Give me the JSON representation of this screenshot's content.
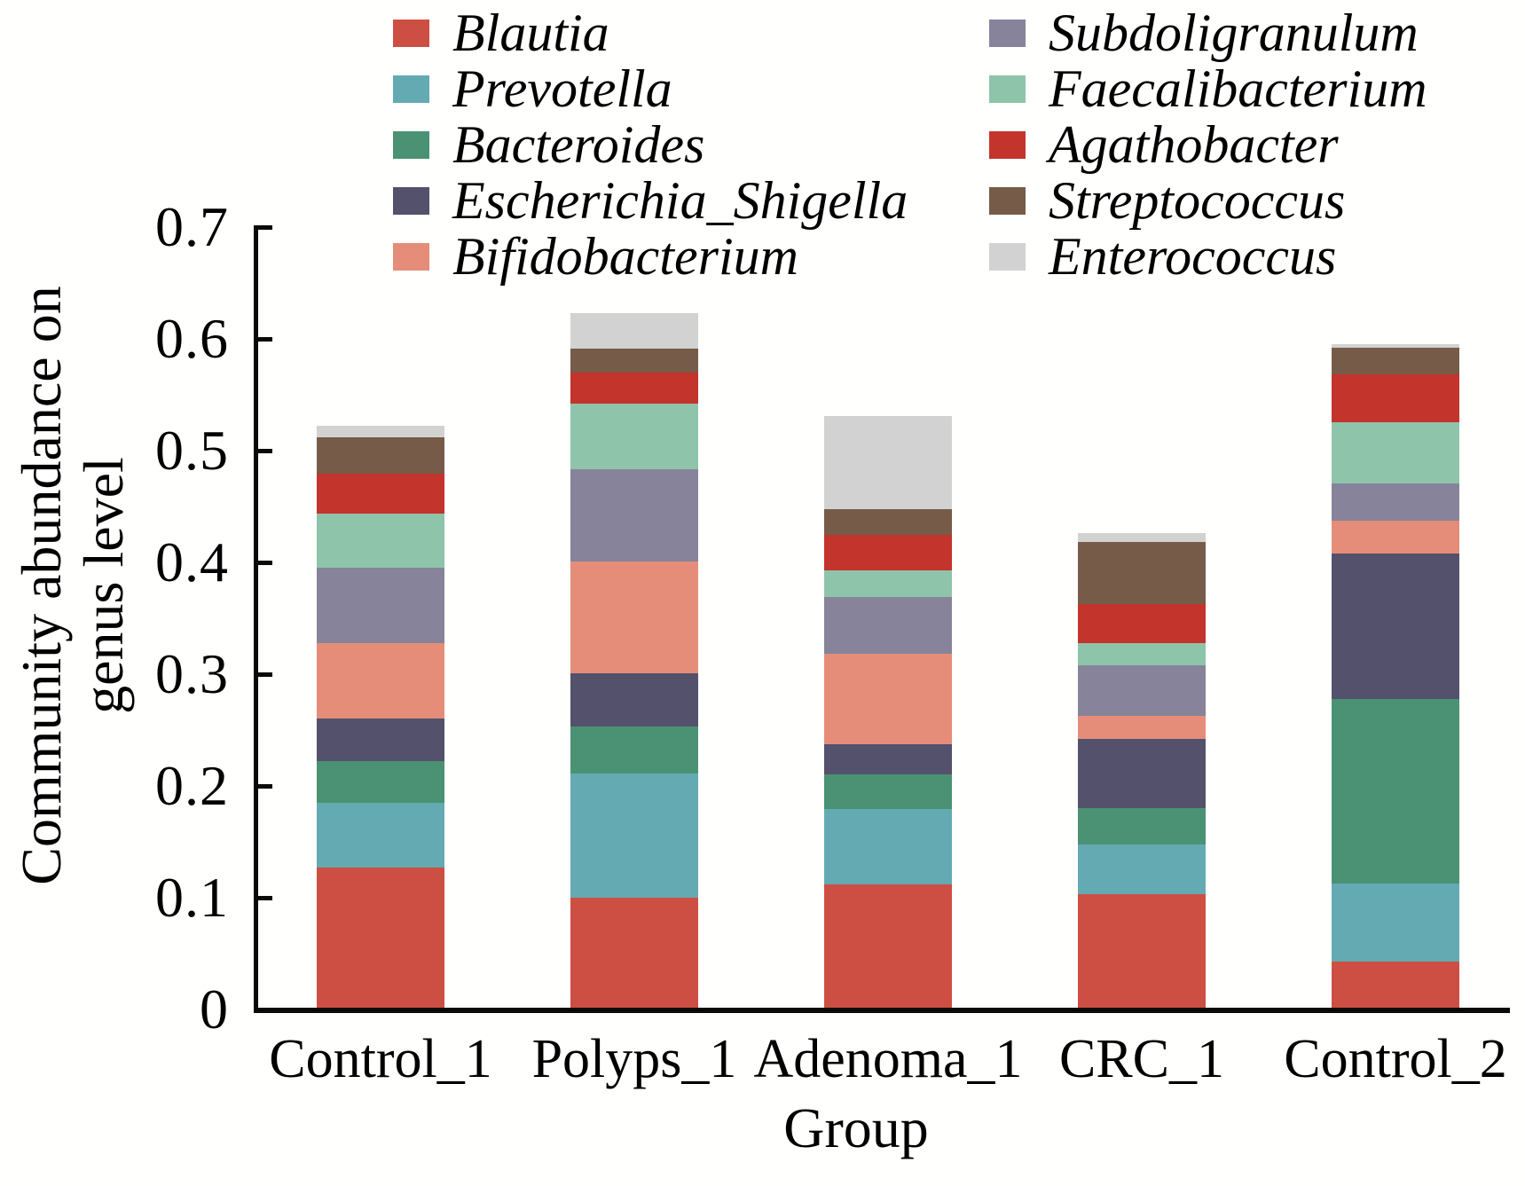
{
  "chart_data": {
    "type": "bar",
    "stacked": true,
    "title": "",
    "xlabel": "Group",
    "ylabel": "Community abundance on genus level",
    "ylabel_lines": [
      "Community abundance on",
      "genus level"
    ],
    "ylim": [
      0,
      0.7
    ],
    "grid": false,
    "legend_position": "top",
    "y_ticks": [
      {
        "label": "0",
        "value": 0.0
      },
      {
        "label": "0.1",
        "value": 0.1
      },
      {
        "label": "0.2",
        "value": 0.2
      },
      {
        "label": "0.3",
        "value": 0.3
      },
      {
        "label": "0.4",
        "value": 0.4
      },
      {
        "label": "0.5",
        "value": 0.5
      },
      {
        "label": "0.6",
        "value": 0.6
      },
      {
        "label": "0.7",
        "value": 0.7
      }
    ],
    "categories": [
      "Control_1",
      "Polyps_1",
      "Adenoma_1",
      "CRC_1",
      "Control_2"
    ],
    "series": [
      {
        "name": "Blautia",
        "color": "#CD4F43",
        "values": [
          0.127,
          0.1,
          0.112,
          0.103,
          0.043
        ]
      },
      {
        "name": "Prevotella",
        "color": "#64AAB2",
        "values": [
          0.058,
          0.111,
          0.067,
          0.045,
          0.07
        ]
      },
      {
        "name": "Bacteroides",
        "color": "#4A9273",
        "values": [
          0.037,
          0.042,
          0.031,
          0.032,
          0.165
        ]
      },
      {
        "name": "Escherichia_Shigella",
        "color": "#53516C",
        "values": [
          0.038,
          0.048,
          0.027,
          0.062,
          0.13
        ]
      },
      {
        "name": "Bifidobacterium",
        "color": "#E58D78",
        "values": [
          0.068,
          0.1,
          0.081,
          0.021,
          0.029
        ]
      },
      {
        "name": "Subdoligranulum",
        "color": "#87839B",
        "values": [
          0.067,
          0.082,
          0.051,
          0.045,
          0.034
        ]
      },
      {
        "name": "Faecalibacterium",
        "color": "#8EC4AA",
        "values": [
          0.049,
          0.059,
          0.024,
          0.02,
          0.054
        ]
      },
      {
        "name": "Agathobacter",
        "color": "#C3342C",
        "values": [
          0.035,
          0.028,
          0.032,
          0.035,
          0.043
        ]
      },
      {
        "name": "Streptococcus",
        "color": "#765B49",
        "values": [
          0.033,
          0.021,
          0.023,
          0.055,
          0.024
        ]
      },
      {
        "name": "Enterococcus",
        "color": "#D2D2D2",
        "values": [
          0.01,
          0.032,
          0.083,
          0.008,
          0.003
        ]
      }
    ]
  }
}
